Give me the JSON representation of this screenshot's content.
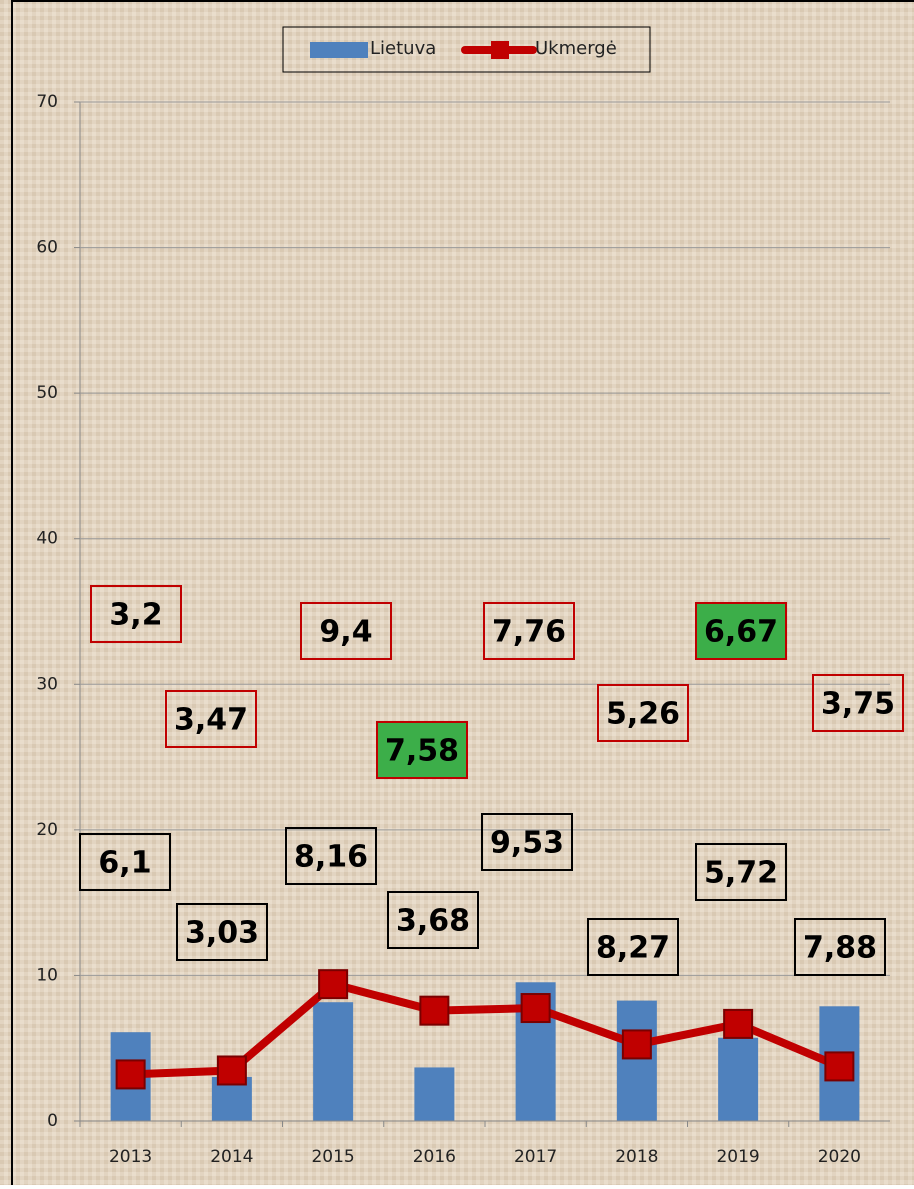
{
  "chart_data": {
    "type": "bar",
    "categories": [
      "2013",
      "2014",
      "2015",
      "2016",
      "2017",
      "2018",
      "2019",
      "2020"
    ],
    "series": [
      {
        "name": "Lietuva",
        "type": "bar",
        "color": "#4f81bd",
        "values": [
          6.1,
          3.03,
          8.16,
          3.68,
          9.53,
          8.27,
          5.72,
          7.88
        ],
        "value_labels": [
          "6,1",
          "3,03",
          "8,16",
          "3,68",
          "9,53",
          "8,27",
          "5,72",
          "7,88"
        ],
        "label_border": "#000000",
        "label_fills": [
          null,
          null,
          null,
          null,
          null,
          null,
          null,
          null
        ]
      },
      {
        "name": "Ukmergė",
        "type": "line",
        "color": "#c00000",
        "values": [
          3.2,
          3.47,
          9.4,
          7.58,
          7.76,
          5.26,
          6.67,
          3.75
        ],
        "value_labels": [
          "3,2",
          "3,47",
          "9,4",
          "7,58",
          "7,76",
          "5,26",
          "6,67",
          "3,75"
        ],
        "label_border": "#c00000",
        "label_fills": [
          null,
          null,
          null,
          "#3cae49",
          null,
          null,
          "#3cae49",
          null
        ]
      }
    ],
    "ylim": [
      0,
      70
    ],
    "yticks": [
      0,
      10,
      20,
      30,
      40,
      50,
      60,
      70
    ],
    "grid": true,
    "legend": "top"
  }
}
